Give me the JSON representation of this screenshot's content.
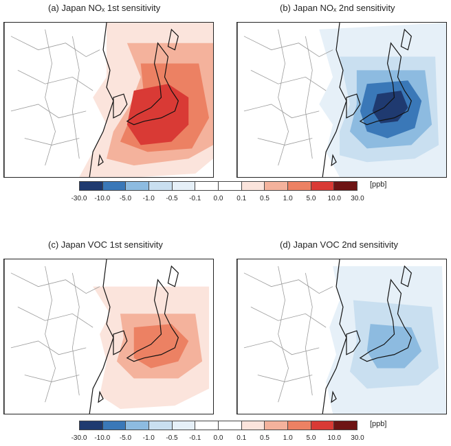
{
  "panels": [
    {
      "title": "(a) Japan NOₓ 1st sensitivity",
      "scheme": "warm-strong"
    },
    {
      "title": "(b) Japan NOₓ 2nd sensitivity",
      "scheme": "cool-strong"
    },
    {
      "title": "(c) Japan VOC 1st sensitivity",
      "scheme": "warm-weak"
    },
    {
      "title": "(d) Japan VOC 2nd sensitivity",
      "scheme": "cool-weak"
    }
  ],
  "colorbar": {
    "unit": "[ppb]",
    "ticks": [
      "-30.0",
      "-10.0",
      "-5.0",
      "-1.0",
      "-0.5",
      "-0.1",
      "0.0",
      "0.1",
      "0.5",
      "1.0",
      "5.0",
      "10.0",
      "30.0"
    ],
    "colors": [
      "#1f3a70",
      "#3a78b8",
      "#8dbbe0",
      "#c9dff0",
      "#e6f0f8",
      "#ffffff",
      "#ffffff",
      "#fbe4dc",
      "#f4b29c",
      "#ec8163",
      "#d93a35",
      "#6e1414"
    ]
  }
}
